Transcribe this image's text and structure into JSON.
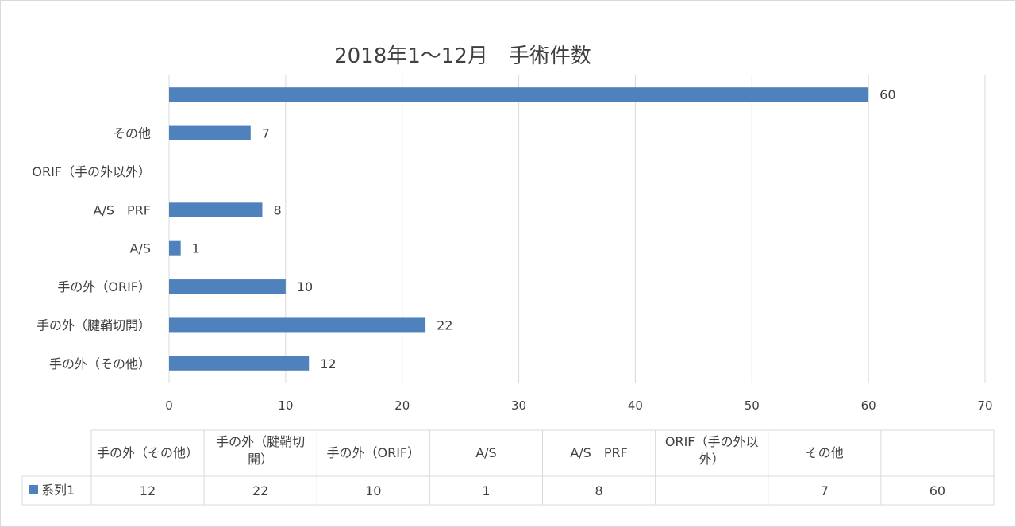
{
  "chart_data": {
    "type": "bar",
    "orientation": "horizontal",
    "title": "2018年1～12月　手術件数",
    "categories": [
      "手の外（その他）",
      "手の外（腱鞘切開）",
      "手の外（ORIF）",
      "A/S",
      "A/S　PRF",
      "ORIF（手の外以外）",
      "その他",
      ""
    ],
    "table_headers": [
      [
        "手の外（その他）"
      ],
      [
        "手の外（腱鞘切",
        "開）"
      ],
      [
        "手の外（ORIF）"
      ],
      [
        "A/S"
      ],
      [
        "A/S　PRF"
      ],
      [
        "ORIF（手の外以",
        "外）"
      ],
      [
        "その他"
      ],
      [
        ""
      ]
    ],
    "series": [
      {
        "name": "系列1",
        "values": [
          12,
          22,
          10,
          1,
          8,
          null,
          7,
          60
        ]
      }
    ],
    "table_values": [
      "12",
      "22",
      "10",
      "1",
      "8",
      "",
      "7",
      "60"
    ],
    "data_labels": [
      "12",
      "22",
      "10",
      "1",
      "8",
      "",
      "7",
      "60"
    ],
    "xlim": [
      0,
      70
    ],
    "x_ticks": [
      "0",
      "10",
      "20",
      "30",
      "40",
      "50",
      "60",
      "70"
    ],
    "grid": true,
    "data_table": true,
    "bar_color": "#4f81bd"
  }
}
